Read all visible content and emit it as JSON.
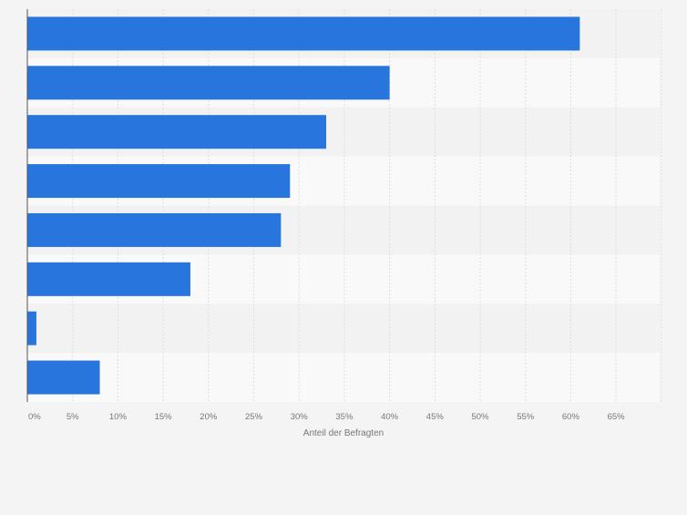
{
  "chart_data": {
    "type": "bar",
    "orientation": "horizontal",
    "categories": [
      "",
      "",
      "",
      "",
      "",
      "",
      "",
      ""
    ],
    "values": [
      61,
      40,
      33,
      29,
      28,
      18,
      1,
      8
    ],
    "xlabel": "Anteil der Befragten",
    "ylabel": "",
    "xlim": [
      0,
      70
    ],
    "ticks": [
      0,
      5,
      10,
      15,
      20,
      25,
      30,
      35,
      40,
      45,
      50,
      55,
      60,
      65
    ],
    "tick_labels": [
      "0%",
      "5%",
      "10%",
      "15%",
      "20%",
      "25%",
      "30%",
      "35%",
      "40%",
      "45%",
      "50%",
      "55%",
      "60%",
      "65%"
    ],
    "grid": true,
    "colors": {
      "bar": "#2876dd",
      "band_dark": "#f2f2f2",
      "band_light": "#f9f9f9",
      "grid": "#dedede",
      "axis": "#555555",
      "tick_text": "#777777",
      "background": "#f4f4f4"
    }
  }
}
